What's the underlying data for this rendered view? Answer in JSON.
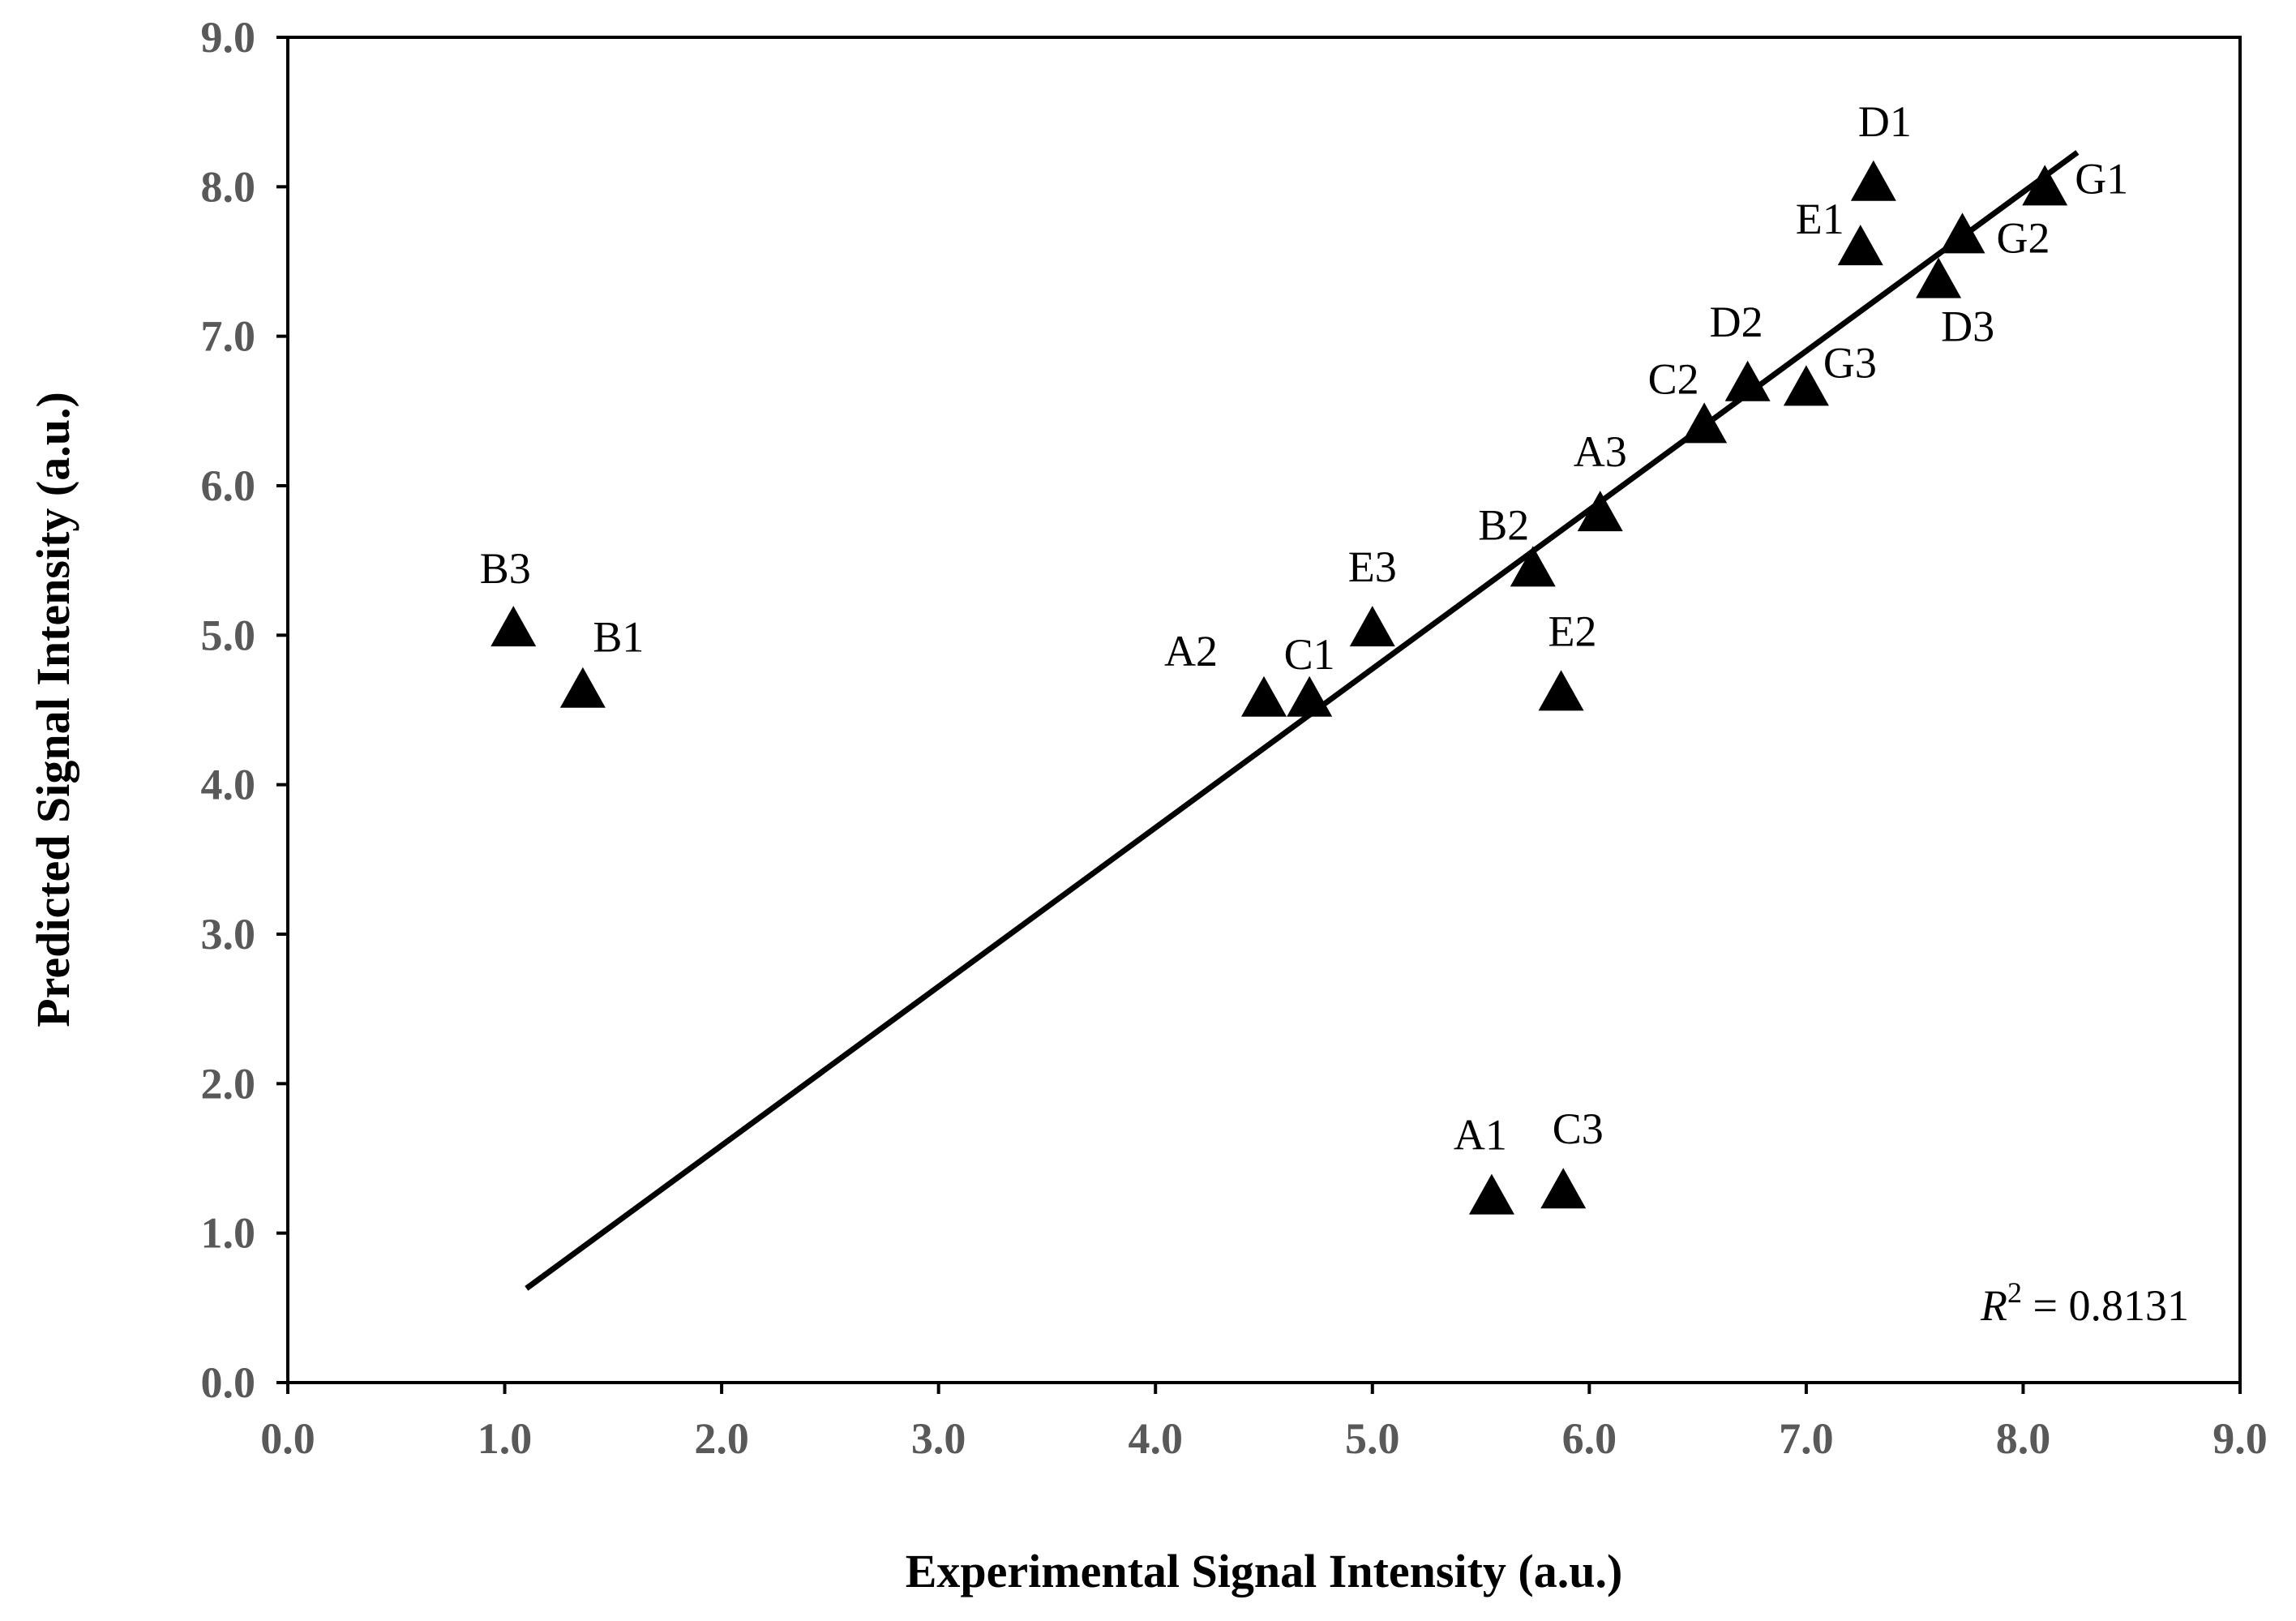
{
  "chart_data": {
    "type": "scatter",
    "title": "",
    "xlabel": "Experimental Signal Intensity (a.u.)",
    "ylabel": "Predicted Signal Intensity (a.u.)",
    "xlim": [
      0.0,
      9.0
    ],
    "ylim": [
      0.0,
      9.0
    ],
    "x_ticks": [
      "0.0",
      "1.0",
      "2.0",
      "3.0",
      "4.0",
      "5.0",
      "6.0",
      "7.0",
      "8.0",
      "9.0"
    ],
    "y_ticks": [
      "0.0",
      "1.0",
      "2.0",
      "3.0",
      "4.0",
      "5.0",
      "6.0",
      "7.0",
      "8.0",
      "9.0"
    ],
    "grid": false,
    "marker": "triangle",
    "marker_color": "#000000",
    "points": [
      {
        "label": "A1",
        "x": 5.55,
        "y": 1.25
      },
      {
        "label": "A2",
        "x": 4.5,
        "y": 4.58
      },
      {
        "label": "A3",
        "x": 6.05,
        "y": 5.82
      },
      {
        "label": "B1",
        "x": 1.36,
        "y": 4.64
      },
      {
        "label": "B2",
        "x": 5.74,
        "y": 5.45
      },
      {
        "label": "B3",
        "x": 1.04,
        "y": 5.05
      },
      {
        "label": "C1",
        "x": 4.71,
        "y": 4.58
      },
      {
        "label": "C2",
        "x": 6.53,
        "y": 6.41
      },
      {
        "label": "C3",
        "x": 5.88,
        "y": 1.29
      },
      {
        "label": "D1",
        "x": 7.31,
        "y": 8.03
      },
      {
        "label": "D2",
        "x": 6.73,
        "y": 6.69
      },
      {
        "label": "D3",
        "x": 7.61,
        "y": 7.38
      },
      {
        "label": "E1",
        "x": 7.25,
        "y": 7.6
      },
      {
        "label": "E2",
        "x": 5.87,
        "y": 4.62
      },
      {
        "label": "E3",
        "x": 5.0,
        "y": 5.05
      },
      {
        "label": "G1",
        "x": 8.1,
        "y": 8.0
      },
      {
        "label": "G2",
        "x": 7.72,
        "y": 7.68
      },
      {
        "label": "G3",
        "x": 7.0,
        "y": 6.66
      }
    ],
    "trendline": {
      "x": [
        1.1,
        8.25
      ],
      "y": [
        0.63,
        8.23
      ]
    },
    "r_squared": {
      "symbol": "R",
      "superscript": "2",
      "text": " = 0.8131"
    }
  }
}
